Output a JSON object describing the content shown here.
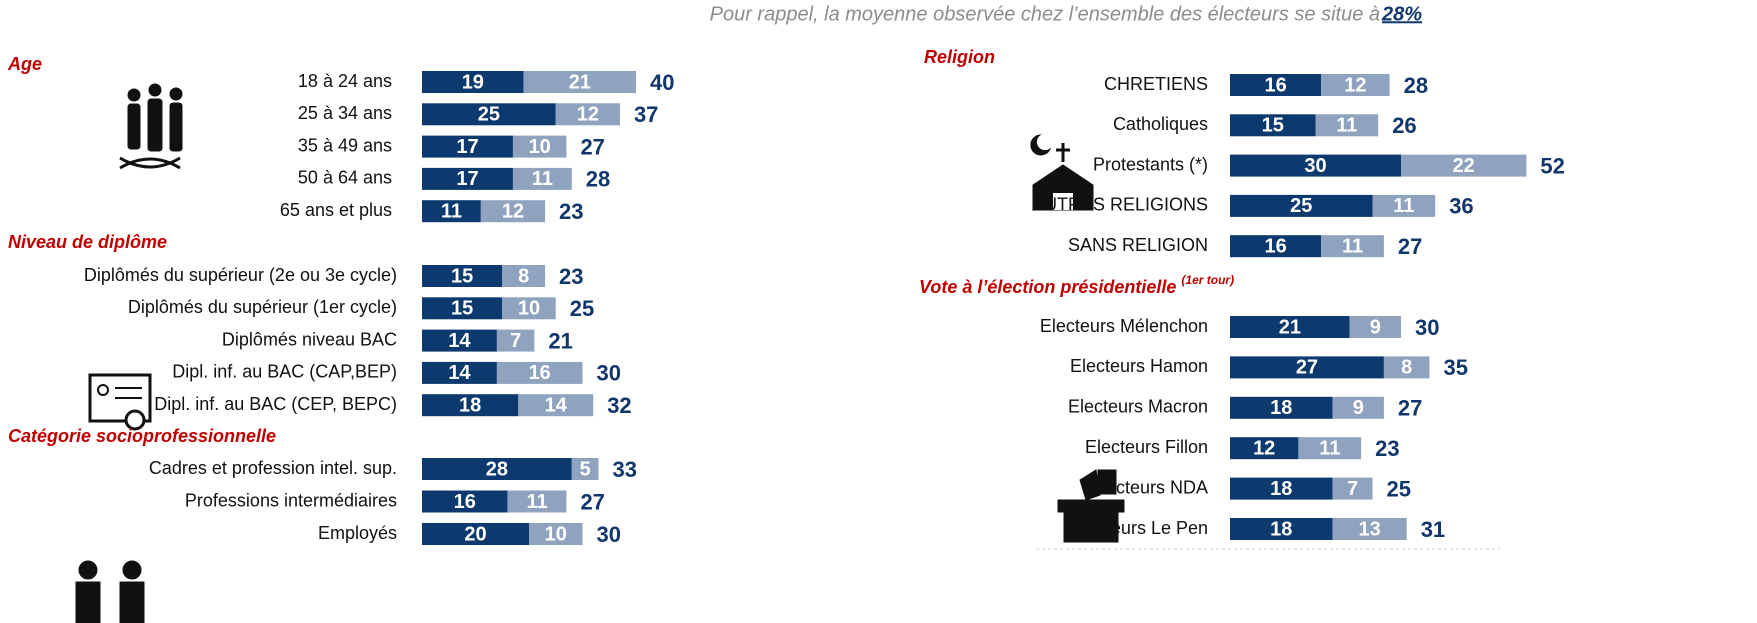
{
  "note": "Pour rappel, la moyenne observée chez l’ensemble des électeurs se situe à ",
  "note_value": "28%",
  "chart_data": [
    {
      "type": "bar",
      "stacked": true,
      "orientation": "horizontal",
      "title": "Age",
      "xlim": [
        0,
        60
      ],
      "categories": [
        "18 à 24 ans",
        "25 à 34 ans",
        "35 à 49 ans",
        "50 à 64 ans",
        "65 ans et plus"
      ],
      "series": [
        {
          "color": "#0d3a6e",
          "values": [
            19,
            25,
            17,
            17,
            11
          ]
        },
        {
          "color": "#8fa3bf",
          "values": [
            21,
            12,
            10,
            11,
            12
          ]
        }
      ],
      "totals": [
        40,
        37,
        27,
        28,
        23
      ]
    },
    {
      "type": "bar",
      "stacked": true,
      "orientation": "horizontal",
      "title": "Niveau de diplôme",
      "xlim": [
        0,
        60
      ],
      "categories": [
        "Diplômés du supérieur (2e ou 3e cycle)",
        "Diplômés du supérieur (1er cycle)",
        "Diplômés niveau BAC",
        "Dipl. inf. au BAC (CAP,BEP)",
        "Dipl. inf. au BAC (CEP, BEPC)"
      ],
      "series": [
        {
          "color": "#0d3a6e",
          "values": [
            15,
            15,
            14,
            14,
            18
          ]
        },
        {
          "color": "#8fa3bf",
          "values": [
            8,
            10,
            7,
            16,
            14
          ]
        }
      ],
      "totals": [
        23,
        25,
        21,
        30,
        32
      ]
    },
    {
      "type": "bar",
      "stacked": true,
      "orientation": "horizontal",
      "title": "Catégorie socioprofessionnelle",
      "xlim": [
        0,
        60
      ],
      "categories": [
        "Cadres et profession intel. sup.",
        "Professions intermédiaires",
        "Employés"
      ],
      "series": [
        {
          "color": "#0d3a6e",
          "values": [
            28,
            16,
            20
          ]
        },
        {
          "color": "#8fa3bf",
          "values": [
            5,
            11,
            10
          ]
        }
      ],
      "totals": [
        33,
        27,
        30
      ]
    },
    {
      "type": "bar",
      "stacked": true,
      "orientation": "horizontal",
      "title": "Religion",
      "xlim": [
        0,
        60
      ],
      "categories": [
        "CHRETIENS",
        "Catholiques",
        "Protestants (*)",
        "AUTRES RELIGIONS",
        "SANS RELIGION"
      ],
      "series": [
        {
          "color": "#0d3a6e",
          "values": [
            16,
            15,
            30,
            25,
            16
          ]
        },
        {
          "color": "#8fa3bf",
          "values": [
            12,
            11,
            22,
            11,
            11
          ]
        }
      ],
      "totals": [
        28,
        26,
        52,
        36,
        27
      ]
    },
    {
      "type": "bar",
      "stacked": true,
      "orientation": "horizontal",
      "title": "Vote à l’élection présidentielle ",
      "title_superscript": "(1er tour)",
      "xlim": [
        0,
        60
      ],
      "categories": [
        "Electeurs Mélenchon",
        "Electeurs Hamon",
        "Electeurs Macron",
        "Electeurs Fillon",
        "Electeurs NDA",
        "Electeurs Le Pen"
      ],
      "series": [
        {
          "color": "#0d3a6e",
          "values": [
            21,
            27,
            18,
            12,
            18,
            18
          ]
        },
        {
          "color": "#8fa3bf",
          "values": [
            9,
            8,
            9,
            11,
            7,
            13
          ]
        }
      ],
      "totals": [
        30,
        35,
        27,
        23,
        25,
        31
      ]
    }
  ]
}
